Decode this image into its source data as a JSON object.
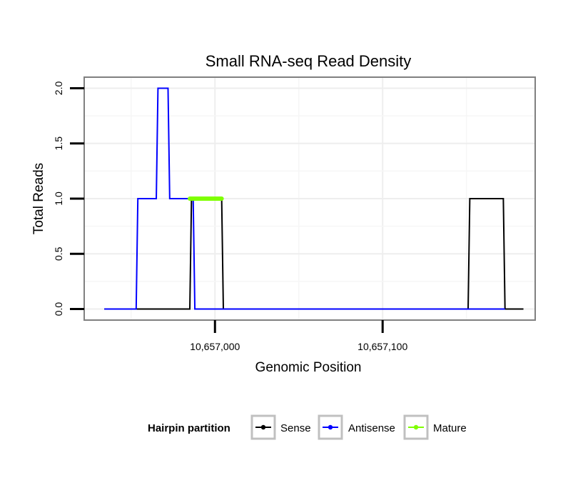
{
  "chart_data": {
    "type": "line",
    "title": "Small RNA-seq Read Density",
    "xlabel": "Genomic Position",
    "ylabel": "Total Reads",
    "xlim": [
      10656922,
      10657191
    ],
    "ylim": [
      -0.1,
      2.1
    ],
    "x_ticks": [
      {
        "value": 10657000,
        "label": "10,657,000"
      },
      {
        "value": 10657100,
        "label": "10,657,100"
      }
    ],
    "y_ticks": [
      {
        "value": 0.0,
        "label": "0.0"
      },
      {
        "value": 0.5,
        "label": "0.5"
      },
      {
        "value": 1.0,
        "label": "1.0"
      },
      {
        "value": 1.5,
        "label": "1.5"
      },
      {
        "value": 2.0,
        "label": "2.0"
      }
    ],
    "grid": true,
    "legend": {
      "title": "Hairpin partition",
      "position": "bottom",
      "entries": [
        "Sense",
        "Antisense",
        "Mature"
      ]
    },
    "series": [
      {
        "name": "Sense",
        "color": "#000000",
        "x": [
          10656934,
          10656985,
          10656986,
          10657004,
          10657005,
          10657151,
          10657152,
          10657172,
          10657173,
          10657184
        ],
        "y": [
          0,
          0,
          1,
          1,
          0,
          0,
          1,
          1,
          0,
          0
        ]
      },
      {
        "name": "Antisense",
        "color": "#0000ff",
        "x": [
          10656934,
          10656953,
          10656954,
          10656965,
          10656966,
          10656972,
          10656973,
          10656984,
          10656987,
          10656988,
          10657152,
          10657173
        ],
        "y": [
          0,
          0,
          1,
          1,
          2,
          2,
          1,
          1,
          1,
          0,
          0,
          0
        ]
      },
      {
        "name": "Mature",
        "color": "#7fff00",
        "x": [
          10656985,
          10657004
        ],
        "y": [
          1,
          1
        ]
      }
    ]
  }
}
